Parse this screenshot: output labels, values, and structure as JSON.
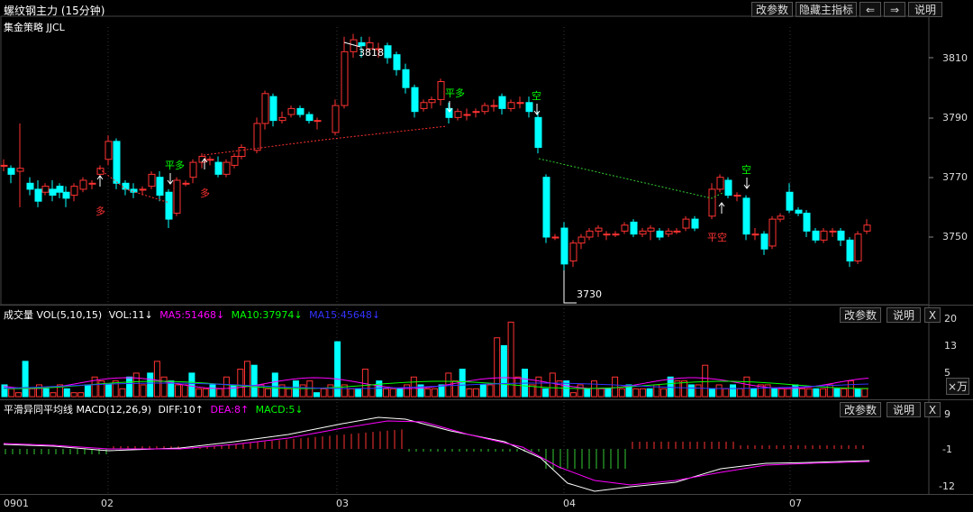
{
  "header": {
    "title": "螺纹钢主力 (15分钟)",
    "subtitle": "集金策略 JJCL",
    "buttons": {
      "params": "改参数",
      "hide": "隐藏主指标",
      "left": "⇐",
      "right": "⇒",
      "help": "说明"
    }
  },
  "price_axis": [
    "3810",
    "3790",
    "3770",
    "3750"
  ],
  "annotations": {
    "high": "3818",
    "low": "3730",
    "sig_ping1": "平多",
    "sig_duo1": "多",
    "sig_duo2": "多",
    "sig_ping2": "平多",
    "sig_kong1": "空",
    "sig_pingkong": "平空",
    "sig_kong2": "空"
  },
  "volume_panel": {
    "label": "成交量 VOL(5,10,15)",
    "vol": "VOL:11↓",
    "ma5": "MA5:51468↓",
    "ma10": "MA10:37974↓",
    "ma15": "MA15:45648↓",
    "axis": [
      "20",
      "13",
      "5"
    ],
    "unit": "×万",
    "buttons": {
      "params": "改参数",
      "help": "说明",
      "close": "X"
    }
  },
  "macd_panel": {
    "label": "平滑异同平均线 MACD(12,26,9)",
    "diff": "DIFF:10↑",
    "dea": "DEA:8↑",
    "macd": "MACD:5↓",
    "axis": [
      "9",
      "-1",
      "-12"
    ],
    "buttons": {
      "params": "改参数",
      "help": "说明",
      "close": "X"
    }
  },
  "time_axis": [
    "0901",
    "02",
    "03",
    "04",
    "07"
  ],
  "colors": {
    "up": "#ff3232",
    "down": "#00ffff",
    "ma5": "#ff00ff",
    "ma10": "#00ff00",
    "ma15": "#3333ff",
    "signal_green": "#00ff00",
    "signal_red": "#ff3232"
  }
}
